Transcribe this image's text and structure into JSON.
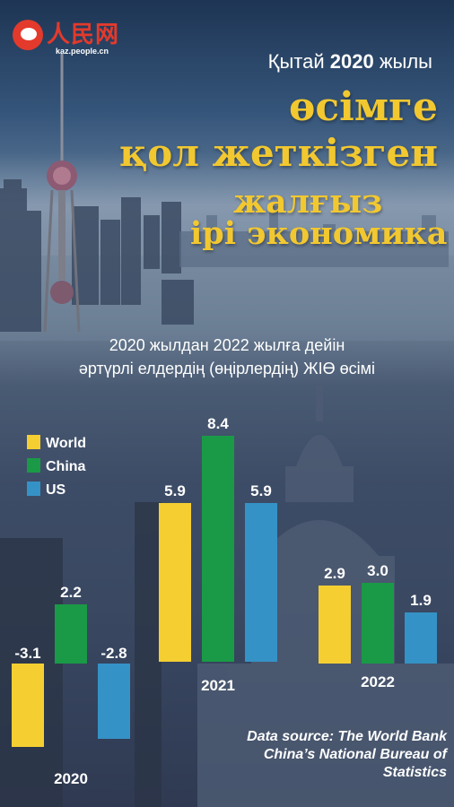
{
  "header": {
    "logo_text": "人民网",
    "logo_url": "kaz.people.cn",
    "subtitle_pre": "Қытай ",
    "subtitle_year": "2020",
    "subtitle_post": " жылы",
    "title_line_1": "өсімге",
    "title_line_2": "қол жеткізген",
    "title_line_3": "жалғыз",
    "title_line_4": "ірі экономика"
  },
  "chart_title": {
    "line_1": "2020 жылдан 2022 жылға дейін",
    "line_2": "әртүрлі елдердің (өңірлердің)  ЖІӨ өсімі"
  },
  "source": {
    "line_1": "Data source: The World Bank",
    "line_2": "China’s National Bureau of",
    "line_3": "Statistics"
  },
  "colors": {
    "World": "#f5cf32",
    "China": "#1a9a46",
    "US": "#3592c6",
    "title_gold": "#f2c830",
    "logo_red": "#e33a2c"
  },
  "chart_data": {
    "type": "bar",
    "categories": [
      "2020",
      "2021",
      "2022"
    ],
    "series": [
      {
        "name": "World",
        "values": [
          -3.1,
          5.9,
          2.9
        ]
      },
      {
        "name": "China",
        "values": [
          2.2,
          8.4,
          3.0
        ]
      },
      {
        "name": "US",
        "values": [
          -2.8,
          5.9,
          1.9
        ]
      }
    ],
    "title": "2020 жылдан 2022 жылға дейін әртүрлі елдердің (өңірлердің)  ЖІӨ өсімі",
    "legend": "top-left",
    "value_labels": true,
    "grid": false
  }
}
